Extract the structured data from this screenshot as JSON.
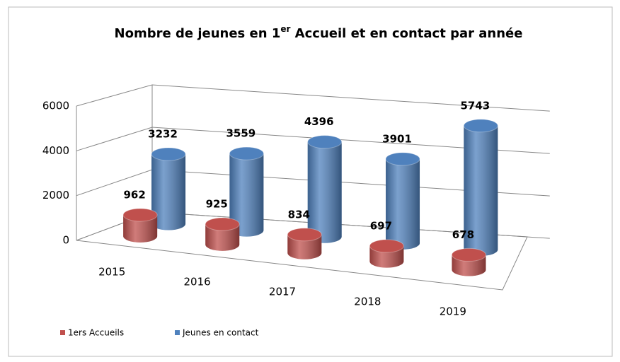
{
  "chart_data": {
    "type": "bar3d",
    "title": [
      "Nombre de jeunes en 1",
      "er",
      " Accueil et en contact par année"
    ],
    "categories": [
      "2015",
      "2016",
      "2017",
      "2018",
      "2019"
    ],
    "series": [
      {
        "name": "1ers Accueils",
        "color": "#c0504d",
        "values": [
          962,
          925,
          834,
          697,
          678
        ]
      },
      {
        "name": "Jeunes en contact",
        "color": "#4f81bd",
        "values": [
          3232,
          3559,
          4396,
          3901,
          5743
        ]
      }
    ],
    "ylim": [
      0,
      6000
    ],
    "yticks": [
      0,
      2000,
      4000,
      6000
    ],
    "grid": true,
    "legend": "bottom"
  }
}
